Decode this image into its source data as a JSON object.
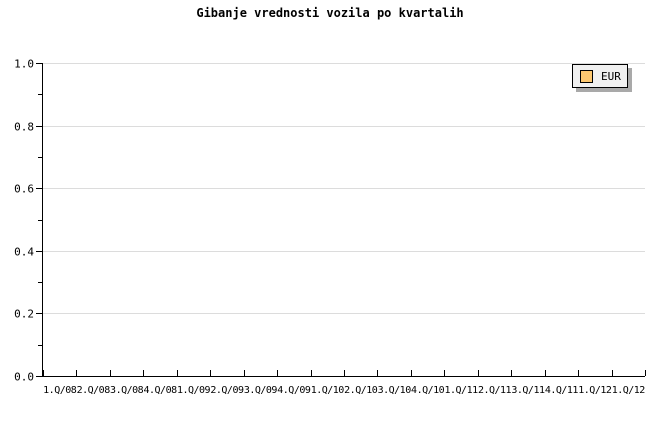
{
  "colors": {
    "background": "#ffffff",
    "axis": "#000000",
    "grid": "#dcdcdc",
    "text": "#000000",
    "legend_background": "#f0f0f0",
    "legend_border": "#000000",
    "legend_shadow": "#a9a9a9",
    "series_swatch": "#fdc870",
    "swatch_border": "#000000"
  },
  "chart_data": {
    "type": "line",
    "title": "Gibanje vrednosti vozila po kvartalih",
    "categories": [
      "1.Q/08",
      "2.Q/08",
      "3.Q/08",
      "4.Q/08",
      "1.Q/09",
      "2.Q/09",
      "3.Q/09",
      "4.Q/09",
      "1.Q/10",
      "2.Q/10",
      "3.Q/10",
      "4.Q/10",
      "1.Q/11",
      "2.Q/11",
      "3.Q/11",
      "4.Q/11",
      "1.Q/12",
      "1.Q/12"
    ],
    "series": [
      {
        "name": "EUR",
        "values": [],
        "color": "#fdc870"
      }
    ],
    "xlabel": "",
    "ylabel": "",
    "ylim": [
      0.0,
      1.0
    ],
    "y_major_ticks": [
      1.0,
      0.8,
      0.6,
      0.4,
      0.2,
      0.0
    ],
    "y_major_tick_labels": [
      "1.0",
      "0.8",
      "0.6",
      "0.4",
      "0.2",
      "0.0"
    ],
    "y_minor_ticks": [
      0.9,
      0.7,
      0.5,
      0.3,
      0.1
    ],
    "grid": true,
    "legend_position": "top-right"
  },
  "legend": {
    "items": [
      {
        "label": "EUR",
        "swatch_color": "#fdc870"
      }
    ]
  }
}
